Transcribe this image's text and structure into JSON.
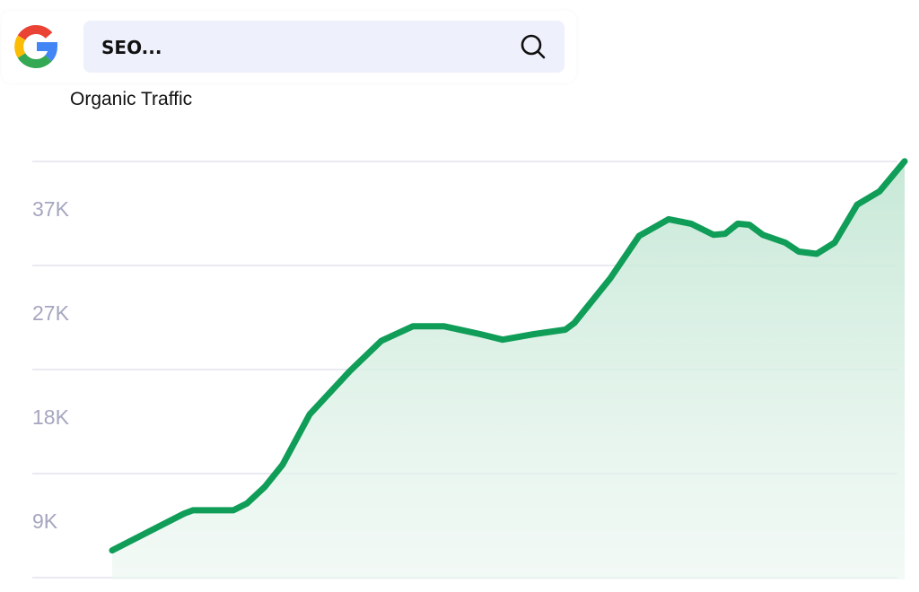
{
  "header": {
    "logo": "Google",
    "search_value": "SEO...",
    "search_icon": "search-icon"
  },
  "chart_data": {
    "type": "area",
    "title": "Organic Traffic",
    "xlabel": "",
    "ylabel": "",
    "ytick_labels": [
      "37K",
      "27K",
      "18K",
      "9K"
    ],
    "grid": true,
    "line_color": "#0f9d58",
    "fill_color": "#d0ecdf",
    "values": [
      6.3,
      9.6,
      9.9,
      9.9,
      10.5,
      12.0,
      14.0,
      18.5,
      22.4,
      25.1,
      26.4,
      26.4,
      25.7,
      25.2,
      25.7,
      26.1,
      26.7,
      30.7,
      34.5,
      36.0,
      35.6,
      34.6,
      34.7,
      35.6,
      35.5,
      34.6,
      33.9,
      33.1,
      32.9,
      33.9,
      37.3,
      38.5,
      41.2
    ],
    "unit": "K"
  }
}
